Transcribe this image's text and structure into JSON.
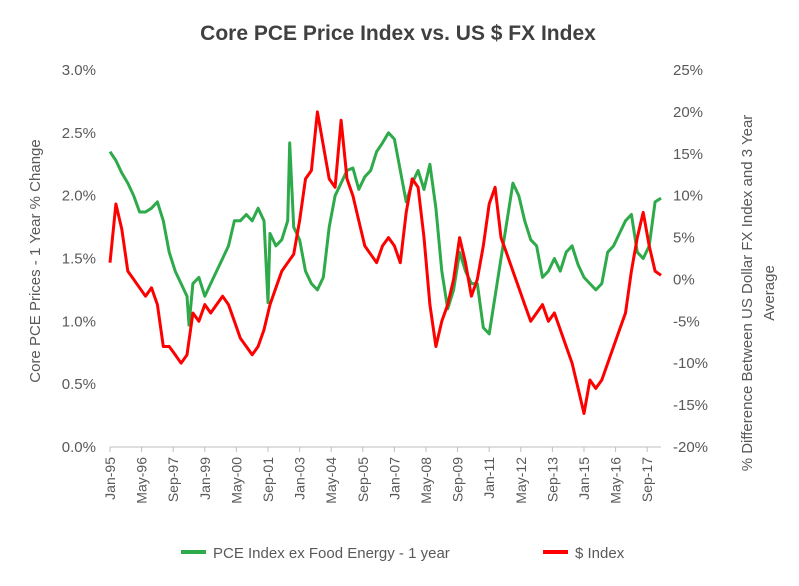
{
  "chart_data": {
    "type": "line",
    "title": "Core PCE Price Index vs. US $ FX Index",
    "ylabel_left": "Core PCE Prices - 1 Year % Change",
    "ylabel_right_lines": [
      "% Difference Between US Dollar FX Index and 3 Year",
      "Average"
    ],
    "ylim_left": [
      0,
      3.0
    ],
    "ylim_right": [
      -20,
      25
    ],
    "yticks_left": [
      "0.0%",
      "0.5%",
      "1.0%",
      "1.5%",
      "2.0%",
      "2.5%",
      "3.0%"
    ],
    "yticks_right": [
      "-20%",
      "-15%",
      "-10%",
      "-5%",
      "0%",
      "5%",
      "10%",
      "15%",
      "20%",
      "25%"
    ],
    "x_tick_labels": [
      "Jan-95",
      "May-96",
      "Sep-97",
      "Jan-99",
      "May-00",
      "Sep-01",
      "Jan-03",
      "May-04",
      "Sep-05",
      "Jan-07",
      "May-08",
      "Sep-09",
      "Jan-11",
      "May-12",
      "Sep-13",
      "Jan-15",
      "May-16",
      "Sep-17"
    ],
    "x_range": [
      "Jan-95",
      "Apr-18"
    ],
    "legend_position": "bottom",
    "grid": false,
    "series": [
      {
        "name": "PCE Index ex Food Energy - 1 year",
        "axis": "left",
        "color": "#2eaa4a",
        "points": [
          [
            "1995-01",
            2.35
          ],
          [
            "1995-04",
            2.28
          ],
          [
            "1995-07",
            2.18
          ],
          [
            "1995-10",
            2.1
          ],
          [
            "1996-01",
            2.0
          ],
          [
            "1996-04",
            1.87
          ],
          [
            "1996-07",
            1.87
          ],
          [
            "1996-10",
            1.9
          ],
          [
            "1997-01",
            1.95
          ],
          [
            "1997-04",
            1.8
          ],
          [
            "1997-07",
            1.55
          ],
          [
            "1997-10",
            1.4
          ],
          [
            "1998-01",
            1.3
          ],
          [
            "1998-04",
            1.2
          ],
          [
            "1998-05",
            0.97
          ],
          [
            "1998-07",
            1.3
          ],
          [
            "1998-10",
            1.35
          ],
          [
            "1999-01",
            1.2
          ],
          [
            "1999-04",
            1.3
          ],
          [
            "1999-07",
            1.4
          ],
          [
            "1999-10",
            1.5
          ],
          [
            "2000-01",
            1.6
          ],
          [
            "2000-04",
            1.8
          ],
          [
            "2000-07",
            1.8
          ],
          [
            "2000-10",
            1.85
          ],
          [
            "2001-01",
            1.8
          ],
          [
            "2001-04",
            1.9
          ],
          [
            "2001-07",
            1.8
          ],
          [
            "2001-09",
            1.15
          ],
          [
            "2001-10",
            1.7
          ],
          [
            "2002-01",
            1.6
          ],
          [
            "2002-04",
            1.65
          ],
          [
            "2002-07",
            1.8
          ],
          [
            "2002-08",
            2.42
          ],
          [
            "2002-10",
            1.75
          ],
          [
            "2003-01",
            1.65
          ],
          [
            "2003-04",
            1.4
          ],
          [
            "2003-07",
            1.3
          ],
          [
            "2003-10",
            1.25
          ],
          [
            "2004-01",
            1.35
          ],
          [
            "2004-04",
            1.75
          ],
          [
            "2004-07",
            2.0
          ],
          [
            "2004-10",
            2.1
          ],
          [
            "2005-01",
            2.2
          ],
          [
            "2005-04",
            2.22
          ],
          [
            "2005-07",
            2.05
          ],
          [
            "2005-10",
            2.15
          ],
          [
            "2006-01",
            2.2
          ],
          [
            "2006-04",
            2.35
          ],
          [
            "2006-07",
            2.42
          ],
          [
            "2006-10",
            2.5
          ],
          [
            "2007-01",
            2.45
          ],
          [
            "2007-04",
            2.2
          ],
          [
            "2007-07",
            1.95
          ],
          [
            "2007-10",
            2.1
          ],
          [
            "2008-01",
            2.2
          ],
          [
            "2008-04",
            2.05
          ],
          [
            "2008-07",
            2.25
          ],
          [
            "2008-10",
            1.9
          ],
          [
            "2009-01",
            1.4
          ],
          [
            "2009-04",
            1.1
          ],
          [
            "2009-07",
            1.25
          ],
          [
            "2009-10",
            1.55
          ],
          [
            "2010-01",
            1.4
          ],
          [
            "2010-04",
            1.3
          ],
          [
            "2010-07",
            1.3
          ],
          [
            "2010-10",
            0.95
          ],
          [
            "2011-01",
            0.9
          ],
          [
            "2011-04",
            1.2
          ],
          [
            "2011-07",
            1.5
          ],
          [
            "2011-10",
            1.8
          ],
          [
            "2012-01",
            2.1
          ],
          [
            "2012-04",
            2.0
          ],
          [
            "2012-07",
            1.8
          ],
          [
            "2012-10",
            1.65
          ],
          [
            "2013-01",
            1.6
          ],
          [
            "2013-04",
            1.35
          ],
          [
            "2013-07",
            1.4
          ],
          [
            "2013-10",
            1.5
          ],
          [
            "2014-01",
            1.4
          ],
          [
            "2014-04",
            1.55
          ],
          [
            "2014-07",
            1.6
          ],
          [
            "2014-10",
            1.45
          ],
          [
            "2015-01",
            1.35
          ],
          [
            "2015-04",
            1.3
          ],
          [
            "2015-07",
            1.25
          ],
          [
            "2015-10",
            1.3
          ],
          [
            "2016-01",
            1.55
          ],
          [
            "2016-04",
            1.6
          ],
          [
            "2016-07",
            1.7
          ],
          [
            "2016-10",
            1.8
          ],
          [
            "2017-01",
            1.85
          ],
          [
            "2017-04",
            1.55
          ],
          [
            "2017-07",
            1.5
          ],
          [
            "2017-10",
            1.6
          ],
          [
            "2018-01",
            1.95
          ],
          [
            "2018-04",
            1.98
          ]
        ]
      },
      {
        "name": "$ Index",
        "axis": "right",
        "color": "#ff0000",
        "points": [
          [
            "1995-01",
            2
          ],
          [
            "1995-04",
            9
          ],
          [
            "1995-07",
            6
          ],
          [
            "1995-10",
            1
          ],
          [
            "1996-01",
            0
          ],
          [
            "1996-04",
            -1
          ],
          [
            "1996-07",
            -2
          ],
          [
            "1996-10",
            -1
          ],
          [
            "1997-01",
            -3
          ],
          [
            "1997-04",
            -8
          ],
          [
            "1997-07",
            -8
          ],
          [
            "1997-10",
            -9
          ],
          [
            "1998-01",
            -10
          ],
          [
            "1998-04",
            -9
          ],
          [
            "1998-07",
            -4
          ],
          [
            "1998-10",
            -5
          ],
          [
            "1999-01",
            -3
          ],
          [
            "1999-04",
            -4
          ],
          [
            "1999-07",
            -3
          ],
          [
            "1999-10",
            -2
          ],
          [
            "2000-01",
            -3
          ],
          [
            "2000-04",
            -5
          ],
          [
            "2000-07",
            -7
          ],
          [
            "2000-10",
            -8
          ],
          [
            "2001-01",
            -9
          ],
          [
            "2001-04",
            -8
          ],
          [
            "2001-07",
            -6
          ],
          [
            "2001-10",
            -3
          ],
          [
            "2002-01",
            -1
          ],
          [
            "2002-04",
            1
          ],
          [
            "2002-07",
            2
          ],
          [
            "2002-10",
            3
          ],
          [
            "2003-01",
            7
          ],
          [
            "2003-04",
            12
          ],
          [
            "2003-07",
            13
          ],
          [
            "2003-10",
            20
          ],
          [
            "2004-01",
            16
          ],
          [
            "2004-04",
            12
          ],
          [
            "2004-07",
            11
          ],
          [
            "2004-10",
            19
          ],
          [
            "2005-01",
            12
          ],
          [
            "2005-04",
            10
          ],
          [
            "2005-07",
            7
          ],
          [
            "2005-10",
            4
          ],
          [
            "2006-01",
            3
          ],
          [
            "2006-04",
            2
          ],
          [
            "2006-07",
            4
          ],
          [
            "2006-10",
            5
          ],
          [
            "2007-01",
            4
          ],
          [
            "2007-04",
            2
          ],
          [
            "2007-07",
            8
          ],
          [
            "2007-10",
            12
          ],
          [
            "2008-01",
            11
          ],
          [
            "2008-04",
            5
          ],
          [
            "2008-07",
            -3
          ],
          [
            "2008-10",
            -8
          ],
          [
            "2009-01",
            -5
          ],
          [
            "2009-04",
            -3
          ],
          [
            "2009-07",
            0
          ],
          [
            "2009-10",
            5
          ],
          [
            "2010-01",
            2
          ],
          [
            "2010-04",
            -2
          ],
          [
            "2010-07",
            0
          ],
          [
            "2010-10",
            4
          ],
          [
            "2011-01",
            9
          ],
          [
            "2011-04",
            11
          ],
          [
            "2011-07",
            5
          ],
          [
            "2011-10",
            3
          ],
          [
            "2012-01",
            1
          ],
          [
            "2012-04",
            -1
          ],
          [
            "2012-07",
            -3
          ],
          [
            "2012-10",
            -5
          ],
          [
            "2013-01",
            -4
          ],
          [
            "2013-04",
            -3
          ],
          [
            "2013-07",
            -5
          ],
          [
            "2013-10",
            -4
          ],
          [
            "2014-01",
            -6
          ],
          [
            "2014-04",
            -8
          ],
          [
            "2014-07",
            -10
          ],
          [
            "2014-10",
            -13
          ],
          [
            "2015-01",
            -16
          ],
          [
            "2015-04",
            -12
          ],
          [
            "2015-07",
            -13
          ],
          [
            "2015-10",
            -12
          ],
          [
            "2016-01",
            -10
          ],
          [
            "2016-04",
            -8
          ],
          [
            "2016-07",
            -6
          ],
          [
            "2016-10",
            -4
          ],
          [
            "2017-01",
            1
          ],
          [
            "2017-04",
            5
          ],
          [
            "2017-07",
            8
          ],
          [
            "2017-10",
            4
          ],
          [
            "2018-01",
            1
          ],
          [
            "2018-04",
            0.5
          ]
        ]
      }
    ]
  }
}
